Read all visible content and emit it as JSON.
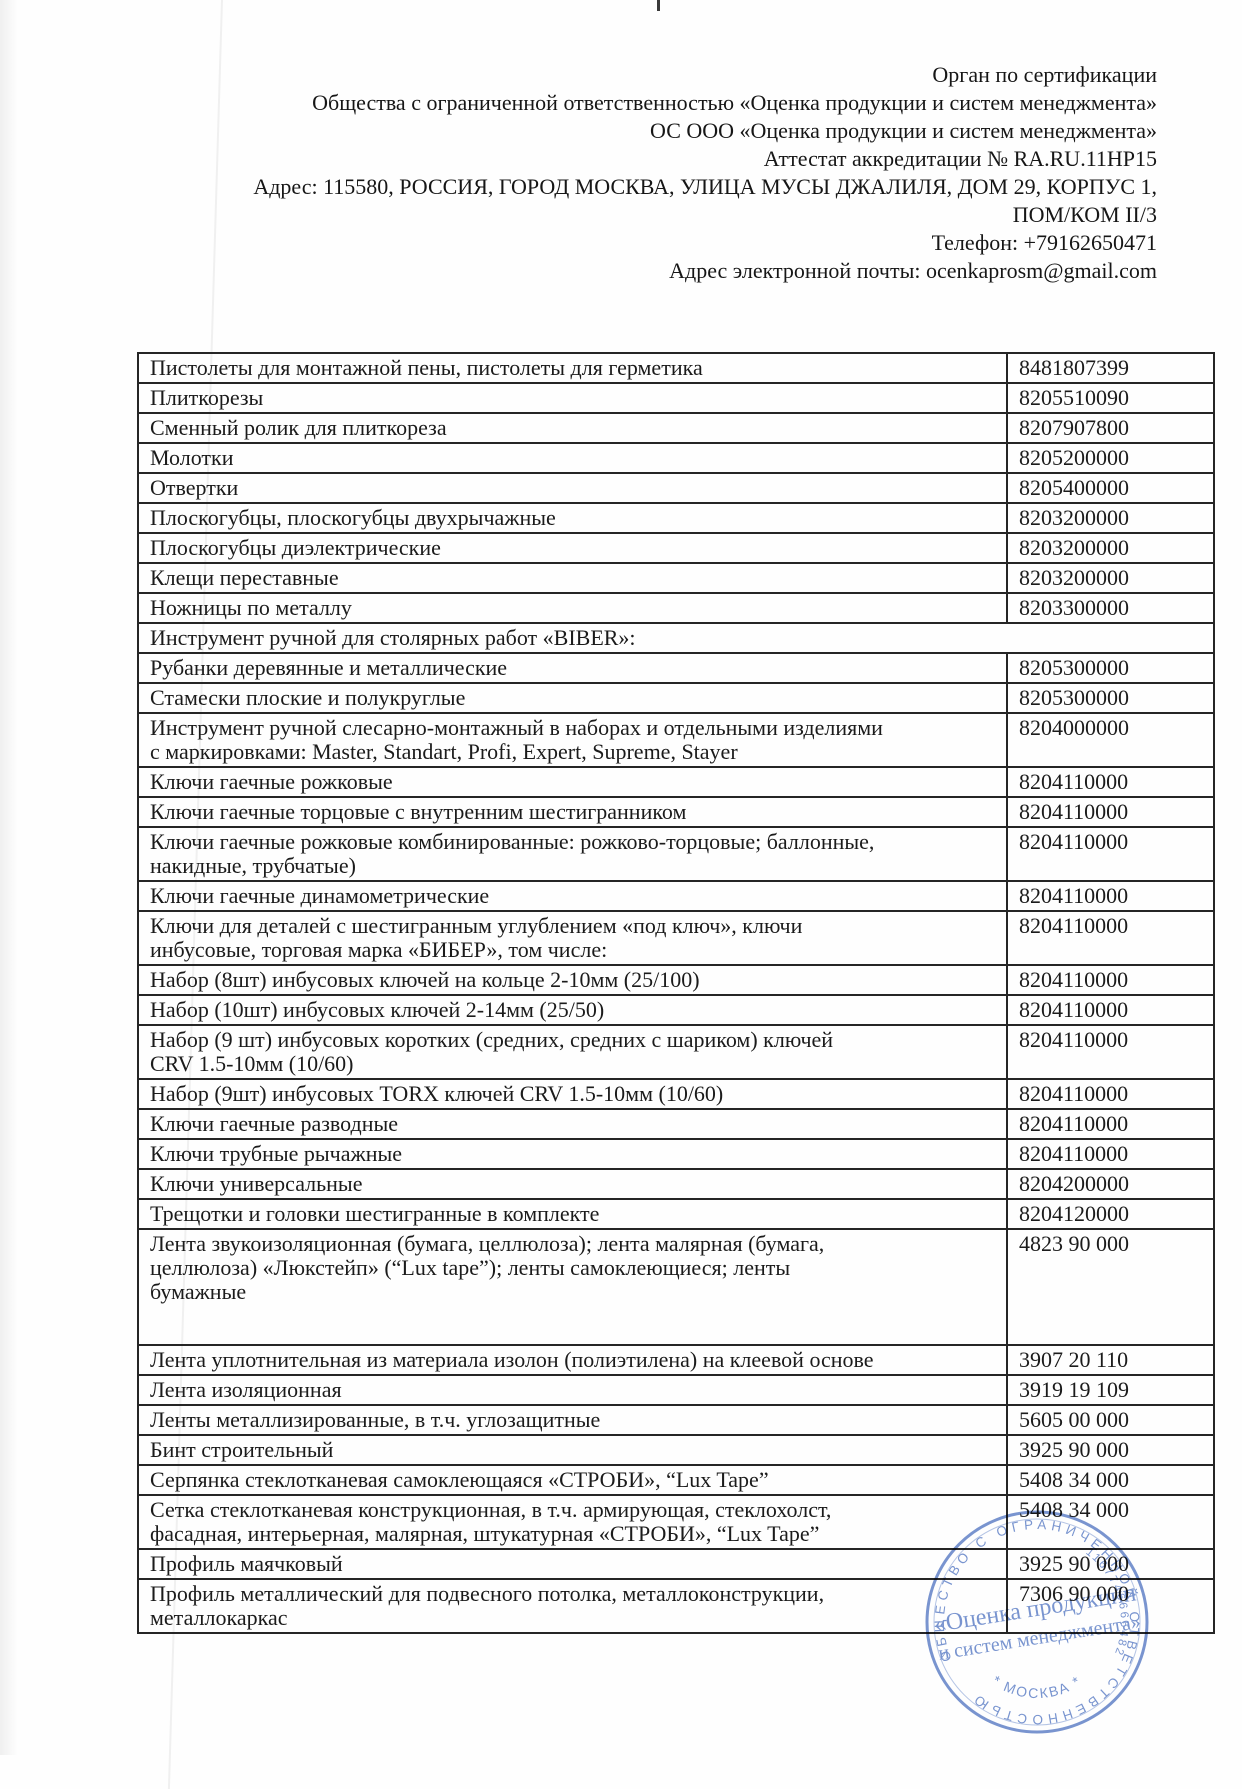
{
  "header": {
    "lines": [
      "Орган по сертификации",
      "Общества с ограниченной ответственностью «Оценка продукции и систем менеджмента»",
      "ОС ООО «Оценка продукции и систем менеджмента»",
      "Аттестат аккредитации № RA.RU.11НР15",
      "Адрес: 115580, РОССИЯ, ГОРОД МОСКВА, УЛИЦА МУСЫ ДЖАЛИЛЯ, ДОМ 29, КОРПУС 1,",
      "ПОМ/КОМ II/3",
      "Телефон: +79162650471",
      "Адрес электронной почты: ocenkaprosm@gmail.com"
    ]
  },
  "table": {
    "rows": [
      {
        "name": "Пистолеты для монтажной пены, пистолеты для герметика",
        "code": "8481807399"
      },
      {
        "name": "Плиткорезы",
        "code": "8205510090"
      },
      {
        "name": "Сменный ролик для плиткореза",
        "code": "8207907800"
      },
      {
        "name": "Молотки",
        "code": "8205200000"
      },
      {
        "name": "Отвертки",
        "code": "8205400000"
      },
      {
        "name": "Плоскогубцы, плоскогубцы двухрычажные",
        "code": "8203200000"
      },
      {
        "name": "Плоскогубцы диэлектрические",
        "code": "8203200000"
      },
      {
        "name": "Клещи переставные",
        "code": "8203200000"
      },
      {
        "name": "Ножницы по металлу",
        "code": "8203300000"
      },
      {
        "name": "Инструмент ручной для столярных работ «BIBER»:",
        "code": "",
        "span": true
      },
      {
        "name": "Рубанки деревянные и металлические",
        "code": "8205300000"
      },
      {
        "name": "Стамески плоские и полукруглые",
        "code": "8205300000"
      },
      {
        "name": "Инструмент ручной слесарно-монтажный в наборах и отдельными изделиями\nс маркировками: Master, Standart, Profi, Expert, Supreme, Stayer",
        "code": "8204000000"
      },
      {
        "name": "Ключи гаечные рожковые",
        "code": "8204110000"
      },
      {
        "name": "Ключи гаечные торцовые с внутренним шестигранником",
        "code": "8204110000"
      },
      {
        "name": "Ключи гаечные рожковые комбинированные: рожково-торцовые; баллонные,\nнакидные, трубчатые)",
        "code": "8204110000",
        "code_valign": "middle"
      },
      {
        "name": "Ключи гаечные динамометрические",
        "code": "8204110000"
      },
      {
        "name": "Ключи для деталей с шестигранным углублением «под ключ», ключи\nинбусовые, торговая марка «БИБЕР», том числе:",
        "code": "8204110000",
        "code_valign": "middle"
      },
      {
        "name": "Набор (8шт) инбусовых ключей на кольце 2-10мм (25/100)",
        "code": "8204110000"
      },
      {
        "name": "Набор (10шт) инбусовых ключей 2-14мм (25/50)",
        "code": "8204110000"
      },
      {
        "name": "Набор (9 шт) инбусовых коротких (средних, средних с шариком) ключей\nCRV 1.5-10мм (10/60)",
        "code": "8204110000",
        "code_valign": "middle"
      },
      {
        "name": "Набор (9шт) инбусовых TORX ключей CRV 1.5-10мм (10/60)",
        "code": "8204110000"
      },
      {
        "name": "Ключи гаечные разводные",
        "code": "8204110000"
      },
      {
        "name": "Ключи трубные рычажные",
        "code": "8204110000"
      },
      {
        "name": "Ключи универсальные",
        "code": "8204200000"
      },
      {
        "name": "Трещотки и головки шестигранные в комплекте",
        "code": "8204120000"
      },
      {
        "name": "Лента звукоизоляционная (бумага, целлюлоза); лента малярная (бумага,\nцеллюлоза) «Люкстейп» (“Lux tape”); ленты самоклеющиеся; ленты\nбумажные",
        "code": "4823 90 000",
        "tall": true
      },
      {
        "name": "Лента уплотнительная из материала изолон (полиэтилена) на клеевой основе",
        "code": "3907 20 110"
      },
      {
        "name": "Лента изоляционная",
        "code": "3919 19 109"
      },
      {
        "name": "Ленты металлизированные, в т.ч. углозащитные",
        "code": "5605 00 000"
      },
      {
        "name": "Бинт строительный",
        "code": "3925 90 000"
      },
      {
        "name": "Серпянка стеклотканевая самоклеющаяся «СТРОБИ», “Lux Tape”",
        "code": "5408 34 000"
      },
      {
        "name": "Сетка стеклотканевая конструкционная, в т.ч. армирующая, стеклохолст,\nфасадная, интерьерная, малярная, штукатурная «СТРОБИ», “Lux Tape”",
        "code": "5408 34 000"
      },
      {
        "name": "Профиль маячковый",
        "code": "3925 90 000"
      },
      {
        "name": "Профиль металлический для подвесного потолка, металлоконструкции,\nметаллокаркас",
        "code": "7306 90 000"
      }
    ]
  },
  "stamp": {
    "ring_text": "ОБЩЕСТВО С ОГРАНИЧЕННОЙ ОТВЕТСТВЕННОСТЬЮ",
    "number": "1167746666482",
    "city": "* МОСКВА *",
    "center_line1": "«Оценка продукции",
    "center_line2": "и систем менеджмента»",
    "color": "#5b7ec6"
  }
}
